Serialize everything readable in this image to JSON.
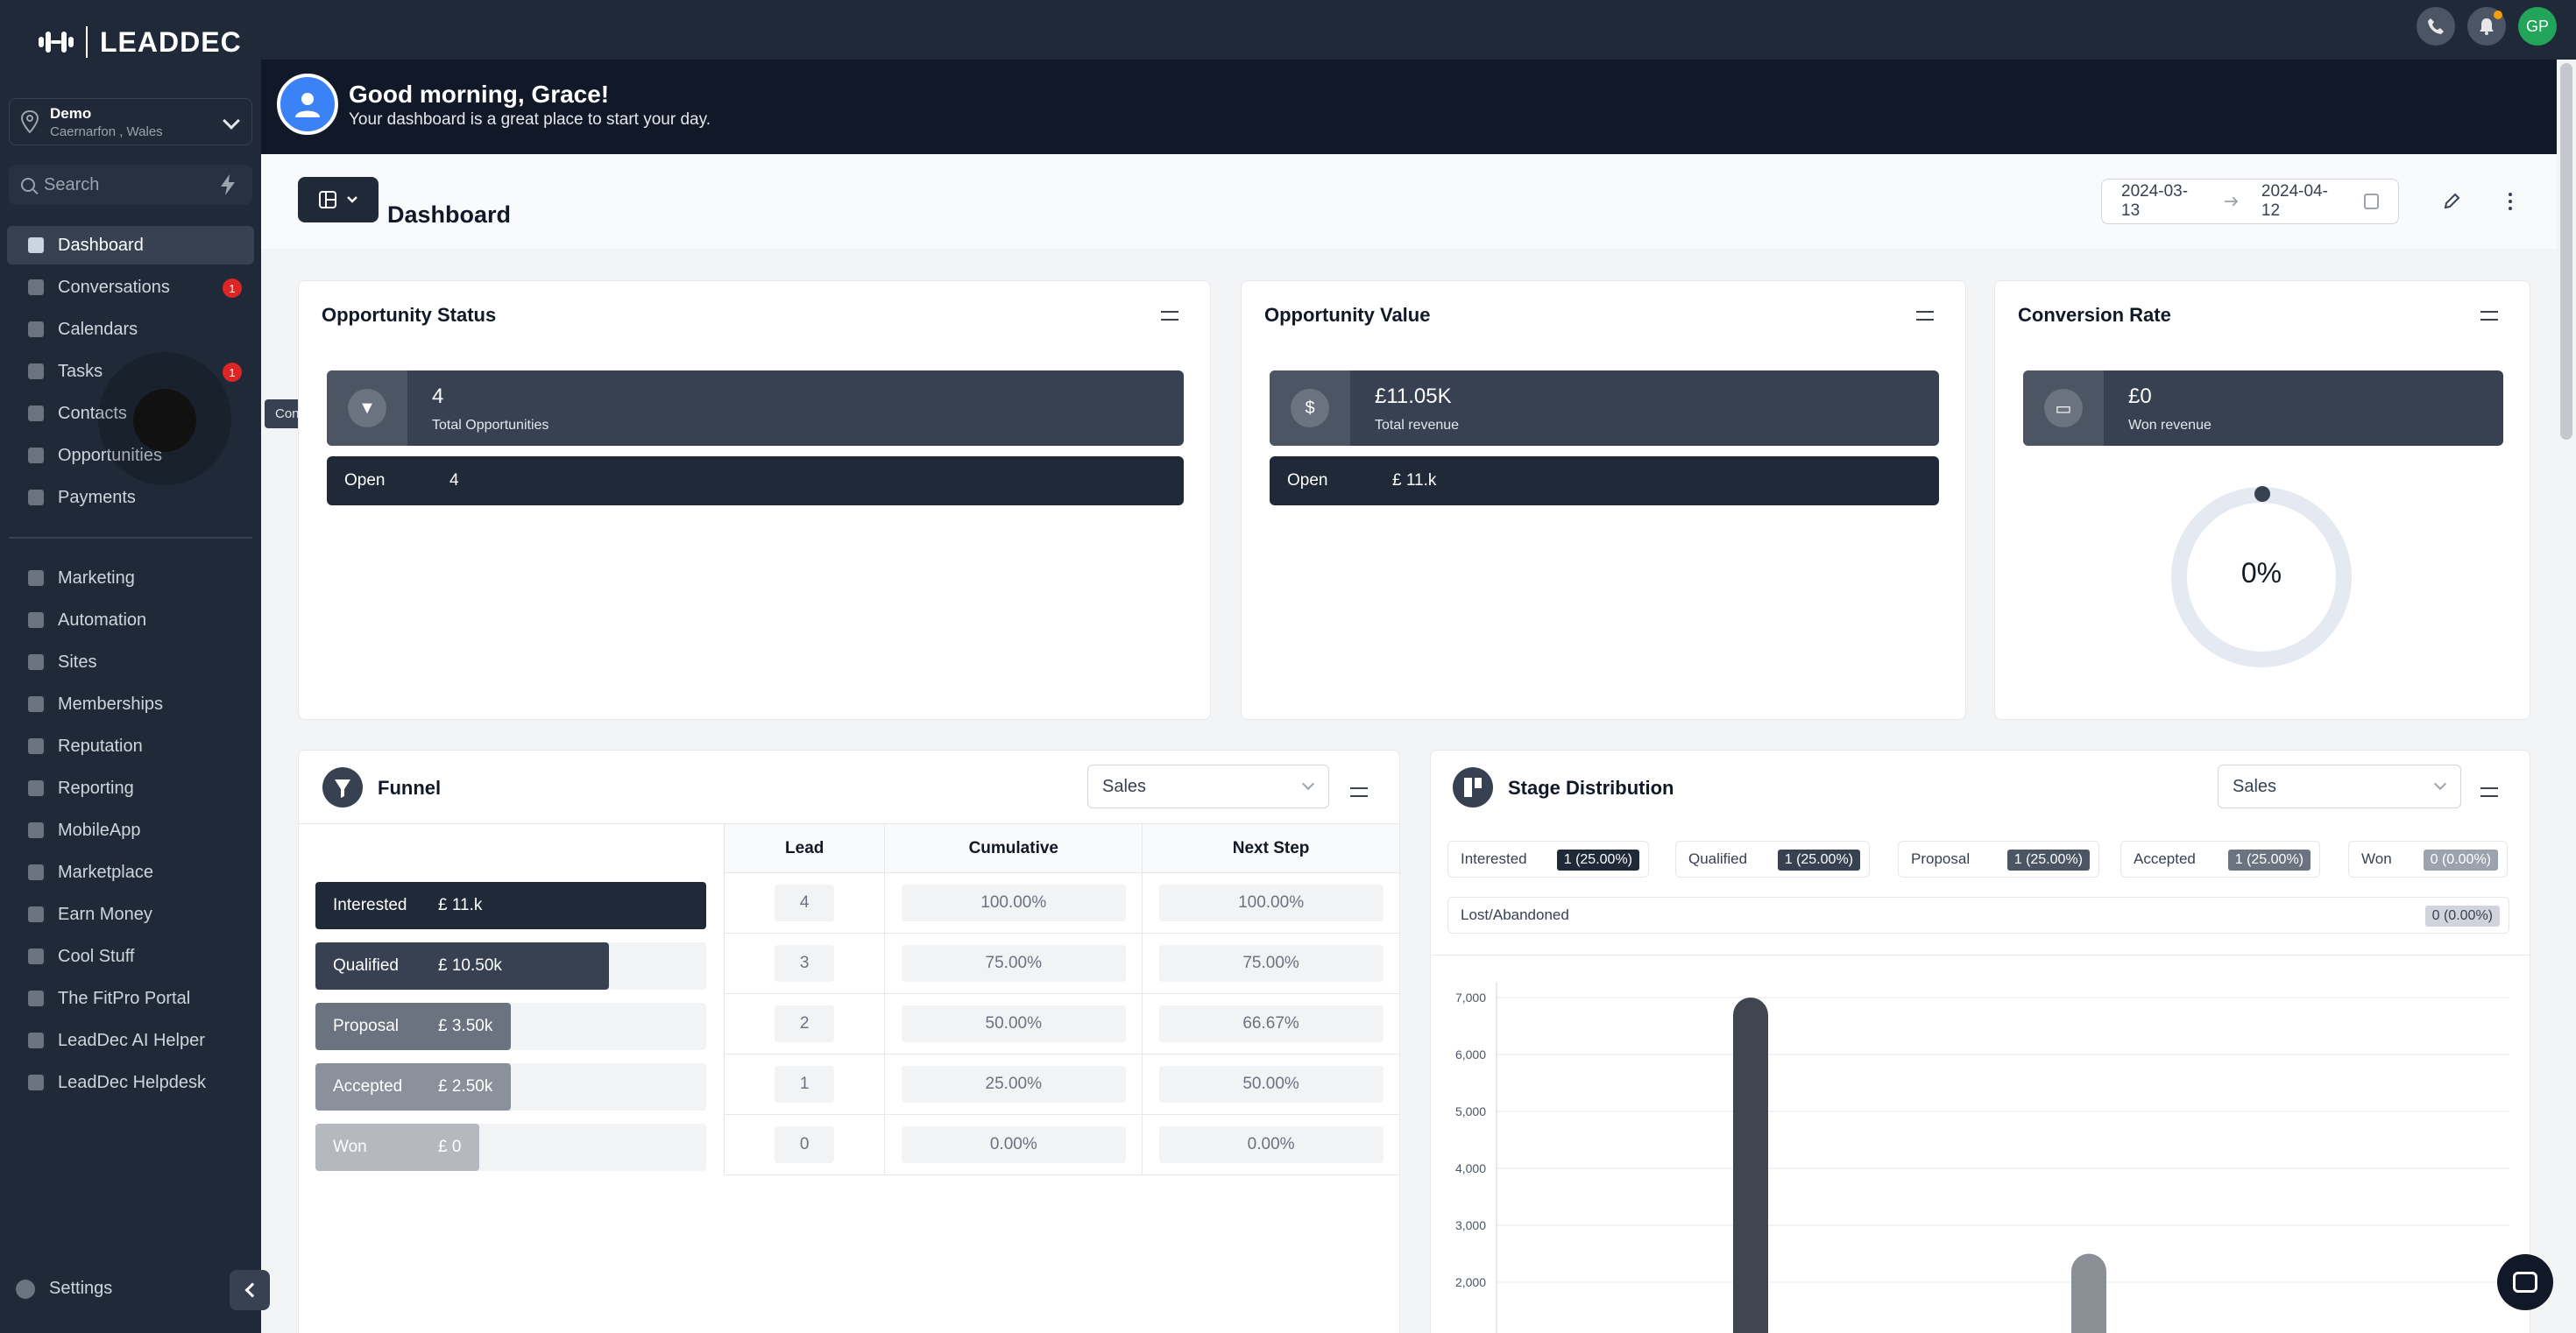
{
  "brand": {
    "name": "LEADDEC"
  },
  "location": {
    "name": "Demo",
    "address": "Caernarfon , Wales"
  },
  "search": {
    "placeholder": "Search"
  },
  "nav_primary": [
    {
      "label": "Dashboard",
      "active": true
    },
    {
      "label": "Conversations",
      "badge": "1"
    },
    {
      "label": "Calendars"
    },
    {
      "label": "Tasks",
      "badge": "1"
    },
    {
      "label": "Contacts",
      "hover": true
    },
    {
      "label": "Opportunities"
    },
    {
      "label": "Payments"
    }
  ],
  "nav_secondary": [
    {
      "label": "Marketing"
    },
    {
      "label": "Automation"
    },
    {
      "label": "Sites"
    },
    {
      "label": "Memberships"
    },
    {
      "label": "Reputation"
    },
    {
      "label": "Reporting"
    },
    {
      "label": "MobileApp"
    },
    {
      "label": "Marketplace"
    },
    {
      "label": "Earn Money"
    },
    {
      "label": "Cool Stuff"
    },
    {
      "label": "The FitPro Portal"
    },
    {
      "label": "LeadDec AI Helper"
    },
    {
      "label": "LeadDec Helpdesk"
    }
  ],
  "tooltip": "Contacts",
  "settings_label": "Settings",
  "topbar": {
    "avatar_initials": "GP"
  },
  "greeting": {
    "title": "Good morning, Grace!",
    "subtitle": "Your dashboard is a great place to start your day."
  },
  "dashboard": {
    "title": "Dashboard",
    "date_from": "2024-03-13",
    "date_to": "2024-04-12"
  },
  "opportunity_status": {
    "title": "Opportunity Status",
    "stat_value": "4",
    "stat_label": "Total Opportunities",
    "row_label": "Open",
    "row_value": "4"
  },
  "opportunity_value": {
    "title": "Opportunity Value",
    "stat_value": "£11.05K",
    "stat_label": "Total revenue",
    "row_label": "Open",
    "row_value": "£ 11.k"
  },
  "conversion_rate": {
    "title": "Conversion Rate",
    "stat_value": "£0",
    "stat_label": "Won revenue",
    "percent_text": "0%",
    "percent": 0
  },
  "funnel": {
    "title": "Funnel",
    "pipeline": "Sales",
    "columns": [
      "Lead",
      "Cumulative",
      "Next Step"
    ],
    "stages": [
      {
        "name": "Interested",
        "value": "£ 11.k",
        "lead": "4",
        "cumulative": "100.00%",
        "next": "100.00%",
        "fill": 1.0,
        "color": "#1f2937"
      },
      {
        "name": "Qualified",
        "value": "£ 10.50k",
        "lead": "3",
        "cumulative": "75.00%",
        "next": "75.00%",
        "fill": 0.75,
        "color": "#374151"
      },
      {
        "name": "Proposal",
        "value": "£ 3.50k",
        "lead": "2",
        "cumulative": "50.00%",
        "next": "66.67%",
        "fill": 0.5,
        "color": "#6b7280"
      },
      {
        "name": "Accepted",
        "value": "£ 2.50k",
        "lead": "1",
        "cumulative": "25.00%",
        "next": "50.00%",
        "fill": 0.5,
        "color": "#8b919b"
      },
      {
        "name": "Won",
        "value": "£ 0",
        "lead": "0",
        "cumulative": "0.00%",
        "next": "0.00%",
        "fill": 0.42,
        "color": "#b5b9bf"
      }
    ]
  },
  "stage_distribution": {
    "title": "Stage Distribution",
    "pipeline": "Sales",
    "chips": [
      {
        "label": "Interested",
        "value": "1 (25.00%)",
        "color": "#1f2937"
      },
      {
        "label": "Qualified",
        "value": "1 (25.00%)",
        "color": "#374151"
      },
      {
        "label": "Proposal",
        "value": "1 (25.00%)",
        "color": "#4b5563"
      },
      {
        "label": "Accepted",
        "value": "1 (25.00%)",
        "color": "#6b7280"
      },
      {
        "label": "Won",
        "value": "0 (0.00%)",
        "color": "#9ca3af"
      },
      {
        "label": "Lost/Abandoned",
        "value": "0 (0.00%)",
        "color": "#d1d5db"
      }
    ]
  },
  "chart_data": {
    "type": "bar",
    "title": "",
    "xlabel": "",
    "ylabel": "",
    "y_ticks": [
      "7,000",
      "6,000",
      "5,000",
      "4,000",
      "3,000",
      "2,000"
    ],
    "ylim": [
      1000,
      7000
    ],
    "grid": true,
    "series": [
      {
        "values": [
          7000,
          2500
        ],
        "colors": [
          "#3f4650",
          "#8b9096"
        ]
      }
    ]
  }
}
